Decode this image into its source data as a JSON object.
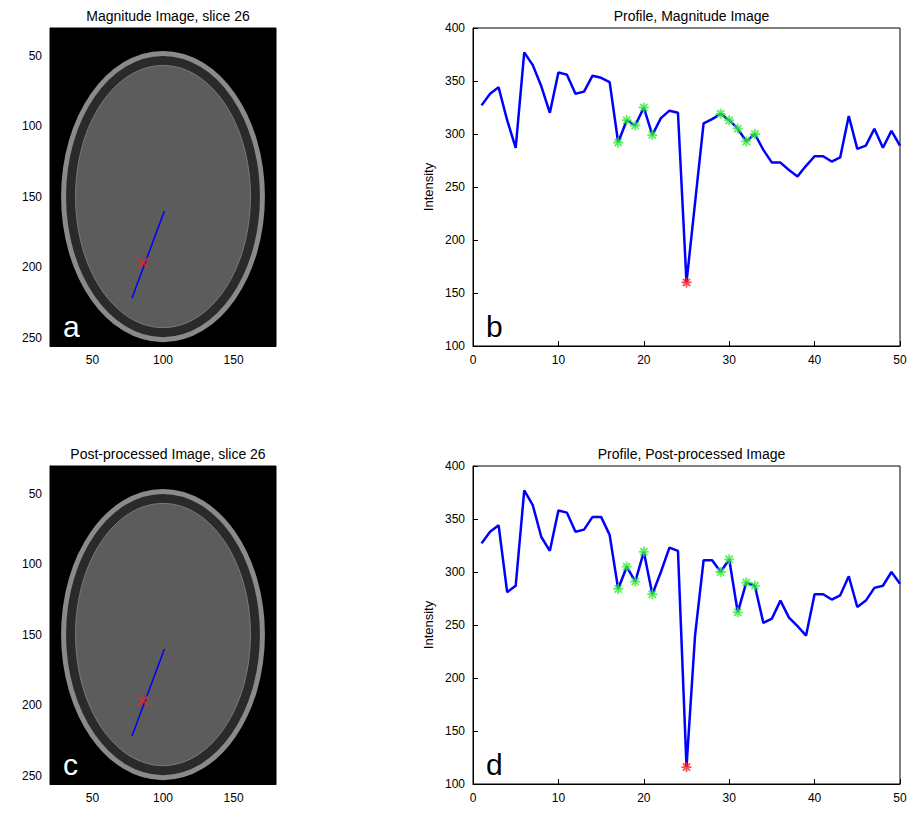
{
  "chart_data": [
    {
      "type": "image",
      "title": "Magnitude Image, slice 26",
      "annotation": "a",
      "xlim": [
        20,
        180
      ],
      "xticks": [
        50,
        100,
        150
      ],
      "ylim": [
        30,
        256
      ],
      "yticks": [
        50,
        100,
        150,
        200,
        250
      ],
      "grid": false,
      "series": [
        {
          "type": "line",
          "color": "#0000ff",
          "x": [
            78,
            101
          ],
          "values": [
            222,
            160
          ]
        },
        {
          "type": "scatter",
          "color": "#ff2020",
          "marker": "x",
          "x": [
            86
          ],
          "values": [
            197
          ]
        }
      ]
    },
    {
      "type": "line",
      "title": "Profile, Magnitude Image",
      "annotation": "b",
      "ylabel": "Intensity",
      "xlim": [
        0,
        50
      ],
      "xticks": [
        0,
        10,
        20,
        30,
        40,
        50
      ],
      "ylim": [
        100,
        400
      ],
      "yticks": [
        100,
        150,
        200,
        250,
        300,
        350,
        400
      ],
      "grid": false,
      "series": [
        {
          "type": "line",
          "color": "#0000ff",
          "x": [
            1,
            2,
            3,
            4,
            5,
            6,
            7,
            8,
            9,
            10,
            11,
            12,
            13,
            14,
            15,
            16,
            17,
            18,
            19,
            20,
            21,
            22,
            23,
            24,
            25,
            26,
            27,
            28,
            29,
            30,
            31,
            32,
            33,
            34,
            35,
            36,
            37,
            38,
            39,
            40,
            41,
            42,
            43,
            44,
            45,
            46,
            47,
            48,
            49,
            50
          ],
          "values": [
            327,
            338,
            344,
            313,
            287,
            377,
            365,
            345,
            320,
            358,
            356,
            338,
            340,
            355,
            353,
            349,
            292,
            313,
            308,
            325,
            299,
            315,
            322,
            320,
            160,
            235,
            310,
            314,
            319,
            313,
            305,
            293,
            300,
            285,
            273,
            273,
            266,
            260,
            270,
            279,
            279,
            274,
            278,
            317,
            286,
            289,
            305,
            287,
            303,
            289
          ]
        },
        {
          "type": "scatter",
          "color": "#33ee33",
          "marker": "asterisk",
          "x": [
            17,
            18,
            19,
            20,
            21,
            29,
            30,
            31,
            32,
            33
          ],
          "values": [
            292,
            313,
            308,
            325,
            299,
            319,
            313,
            305,
            293,
            300
          ]
        },
        {
          "type": "scatter",
          "color": "#ff2020",
          "marker": "asterisk",
          "x": [
            25
          ],
          "values": [
            160
          ]
        }
      ]
    },
    {
      "type": "image",
      "title": "Post-processed Image, slice 26",
      "annotation": "c",
      "xlim": [
        20,
        180
      ],
      "xticks": [
        50,
        100,
        150
      ],
      "ylim": [
        30,
        256
      ],
      "yticks": [
        50,
        100,
        150,
        200,
        250
      ],
      "grid": false,
      "series": [
        {
          "type": "line",
          "color": "#0000ff",
          "x": [
            78,
            101
          ],
          "values": [
            222,
            160
          ]
        },
        {
          "type": "scatter",
          "color": "#ff2020",
          "marker": "x",
          "x": [
            86
          ],
          "values": [
            197
          ]
        }
      ]
    },
    {
      "type": "line",
      "title": "Profile, Post-processed Image",
      "annotation": "d",
      "ylabel": "Intensity",
      "xlim": [
        0,
        50
      ],
      "xticks": [
        0,
        10,
        20,
        30,
        40,
        50
      ],
      "ylim": [
        100,
        400
      ],
      "yticks": [
        100,
        150,
        200,
        250,
        300,
        350,
        400
      ],
      "grid": false,
      "series": [
        {
          "type": "line",
          "color": "#0000ff",
          "x": [
            1,
            2,
            3,
            4,
            5,
            6,
            7,
            8,
            9,
            10,
            11,
            12,
            13,
            14,
            15,
            16,
            17,
            18,
            19,
            20,
            21,
            22,
            23,
            24,
            25,
            26,
            27,
            28,
            29,
            30,
            31,
            32,
            33,
            34,
            35,
            36,
            37,
            38,
            39,
            40,
            41,
            42,
            43,
            44,
            45,
            46,
            47,
            48,
            49,
            50
          ],
          "values": [
            327,
            338,
            344,
            281,
            287,
            377,
            363,
            333,
            320,
            358,
            356,
            338,
            340,
            352,
            352,
            335,
            284,
            305,
            291,
            319,
            279,
            300,
            323,
            320,
            116,
            240,
            311,
            311,
            300,
            312,
            262,
            290,
            287,
            252,
            256,
            273,
            257,
            249,
            240,
            279,
            279,
            274,
            278,
            296,
            267,
            273,
            285,
            287,
            300,
            289
          ]
        },
        {
          "type": "scatter",
          "color": "#33ee33",
          "marker": "asterisk",
          "x": [
            17,
            18,
            19,
            20,
            21,
            29,
            30,
            31,
            32,
            33
          ],
          "values": [
            284,
            305,
            291,
            319,
            279,
            300,
            312,
            262,
            290,
            287
          ]
        },
        {
          "type": "scatter",
          "color": "#ff2020",
          "marker": "asterisk",
          "x": [
            25
          ],
          "values": [
            116
          ]
        }
      ]
    }
  ]
}
